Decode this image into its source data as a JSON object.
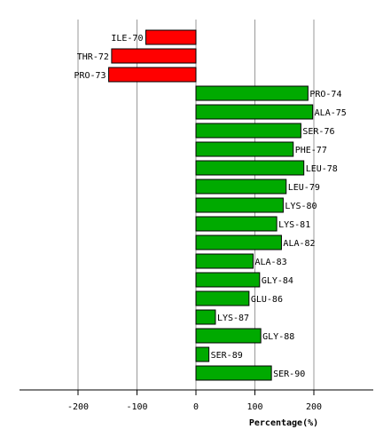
{
  "chart_data": {
    "type": "bar",
    "orientation": "horizontal",
    "xlabel": "Percentage(%)",
    "xlim": [
      -300,
      300
    ],
    "xticks": [
      -200,
      -100,
      0,
      100,
      200
    ],
    "grid": true,
    "colors": {
      "negative": "#ff0000",
      "positive": "#00aa00",
      "grid": "#999999"
    },
    "categories": [
      "ILE-70",
      "THR-72",
      "PRO-73",
      "PRO-74",
      "ALA-75",
      "SER-76",
      "PHE-77",
      "LEU-78",
      "LEU-79",
      "LYS-80",
      "LYS-81",
      "ALA-82",
      "ALA-83",
      "GLY-84",
      "GLU-86",
      "LYS-87",
      "GLY-88",
      "SER-89",
      "SER-90"
    ],
    "values": [
      -85,
      -143,
      -148,
      190,
      198,
      178,
      165,
      183,
      153,
      148,
      137,
      145,
      97,
      108,
      90,
      33,
      110,
      22,
      128
    ]
  }
}
